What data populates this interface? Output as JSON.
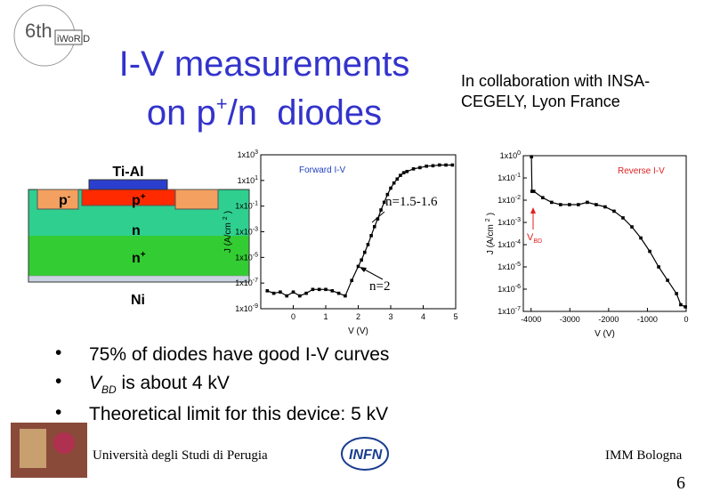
{
  "logo": {
    "edition": "6th",
    "name": "iWoRiD"
  },
  "title": {
    "line1": "I-V measurements",
    "line2_start": "on p",
    "line2_sup": "+",
    "line2_end": "/n  diodes"
  },
  "collaboration": {
    "line1": "In collaboration with INSA-",
    "line2": "CEGELY, Lyon France"
  },
  "diagram": {
    "top_metal": "Ti-Al",
    "p_minus": "p",
    "p_minus_sup": "-",
    "p_plus": "p",
    "p_plus_sup": "+",
    "n": "n",
    "n_plus": "n",
    "n_plus_sup": "+",
    "back_metal": "Ni"
  },
  "chart_data": [
    {
      "type": "line",
      "log_y": true,
      "xlabel": "V (V)",
      "ylabel": {
        "main": "J (A/cm",
        "sup": "2",
        "close": ")"
      },
      "xlim": [
        -1,
        5
      ],
      "xticks": [
        0,
        1,
        2,
        3,
        4,
        5
      ],
      "ylim": [
        1e-09,
        1000
      ],
      "yticks": [
        {
          "value": 1e-09,
          "label": "1x10",
          "sup": "-9"
        },
        {
          "value": 1e-07,
          "label": "1x10",
          "sup": "-7"
        },
        {
          "value": 1e-05,
          "label": "1x10",
          "sup": "-5"
        },
        {
          "value": 0.001,
          "label": "1x10",
          "sup": "-3"
        },
        {
          "value": 0.1,
          "label": "1x10",
          "sup": "-1"
        },
        {
          "value": 10,
          "label": "1x10",
          "sup": "1"
        },
        {
          "value": 1000,
          "label": "1x10",
          "sup": "3"
        }
      ],
      "legend_color": "#1f3fbf",
      "series": [
        {
          "name": "Forward I-V",
          "color": "#000000",
          "x": [
            -0.8,
            -0.6,
            -0.4,
            -0.2,
            0,
            0.2,
            0.4,
            0.6,
            0.8,
            1.0,
            1.2,
            1.4,
            1.6,
            1.8,
            2.0,
            2.1,
            2.2,
            2.3,
            2.4,
            2.5,
            2.6,
            2.7,
            2.8,
            2.9,
            3.0,
            3.1,
            3.2,
            3.3,
            3.4,
            3.5,
            3.7,
            3.9,
            4.1,
            4.3,
            4.5,
            4.7,
            4.9
          ],
          "values": [
            2.5e-08,
            1.6e-08,
            2e-08,
            1e-08,
            2e-08,
            1e-08,
            1.6e-08,
            3.2e-08,
            3.2e-08,
            3.2e-08,
            2.5e-08,
            1.6e-08,
            1e-08,
            1.6e-07,
            2e-06,
            6.3e-06,
            2.5e-05,
            0.0001,
            0.0005,
            0.0025,
            0.01,
            0.05,
            0.2,
            0.8,
            2.5,
            6.3,
            13,
            25,
            40,
            50,
            80,
            100,
            130,
            140,
            160,
            160,
            160
          ]
        }
      ],
      "annotations": [
        {
          "text": "n=1.5-1.6"
        },
        {
          "text": "n=2"
        }
      ]
    },
    {
      "type": "line",
      "log_y": true,
      "xlabel": "V (V)",
      "ylabel": {
        "main": "J (A/cm",
        "sup": "2",
        "close": ")"
      },
      "xlim": [
        -4200,
        0
      ],
      "xticks": [
        -4000,
        -3000,
        -2000,
        -1000,
        0
      ],
      "ylim": [
        1e-07,
        1
      ],
      "yticks": [
        {
          "value": 1e-07,
          "label": "1x10",
          "sup": "-7"
        },
        {
          "value": 1e-06,
          "label": "1x10",
          "sup": "-6"
        },
        {
          "value": 1e-05,
          "label": "1x10",
          "sup": "-5"
        },
        {
          "value": 0.0001,
          "label": "1x10",
          "sup": "-4"
        },
        {
          "value": 0.001,
          "label": "1x10",
          "sup": "-3"
        },
        {
          "value": 0.01,
          "label": "1x10",
          "sup": "-2"
        },
        {
          "value": 0.1,
          "label": "1x10",
          "sup": "-1"
        },
        {
          "value": 1,
          "label": "1x10",
          "sup": "0"
        }
      ],
      "legend_color": "#e02020",
      "series": [
        {
          "name": "Reverse I-V",
          "color": "#000000",
          "x": [
            -3990,
            -3977,
            -3930,
            -3700,
            -3470,
            -3240,
            -3010,
            -2780,
            -2550,
            -2320,
            -2090,
            -1860,
            -1630,
            -1400,
            -1170,
            -940,
            -710,
            -480,
            -250,
            -140,
            -20
          ],
          "values": [
            0.9,
            0.025,
            0.025,
            0.013,
            0.008,
            0.0063,
            0.0063,
            0.0063,
            0.008,
            0.0063,
            0.005,
            0.0032,
            0.0016,
            0.00063,
            0.0002,
            5e-05,
            1e-05,
            2.5e-06,
            6.3e-07,
            2e-07,
            1.6e-07
          ]
        }
      ],
      "annotations": [
        {
          "text": "V",
          "sub": "BD"
        }
      ]
    }
  ],
  "bullets": [
    {
      "text": "75% of diodes have good I-V curves"
    },
    {
      "text_italic": "V",
      "sub": "BD",
      "text": " is about 4 kV"
    },
    {
      "text": "Theoretical limit for this device: 5 kV"
    }
  ],
  "footer": {
    "university": "Università degli Studi di Perugia",
    "infn": "INFN",
    "lab": "IMM Bologna",
    "page": "6"
  }
}
